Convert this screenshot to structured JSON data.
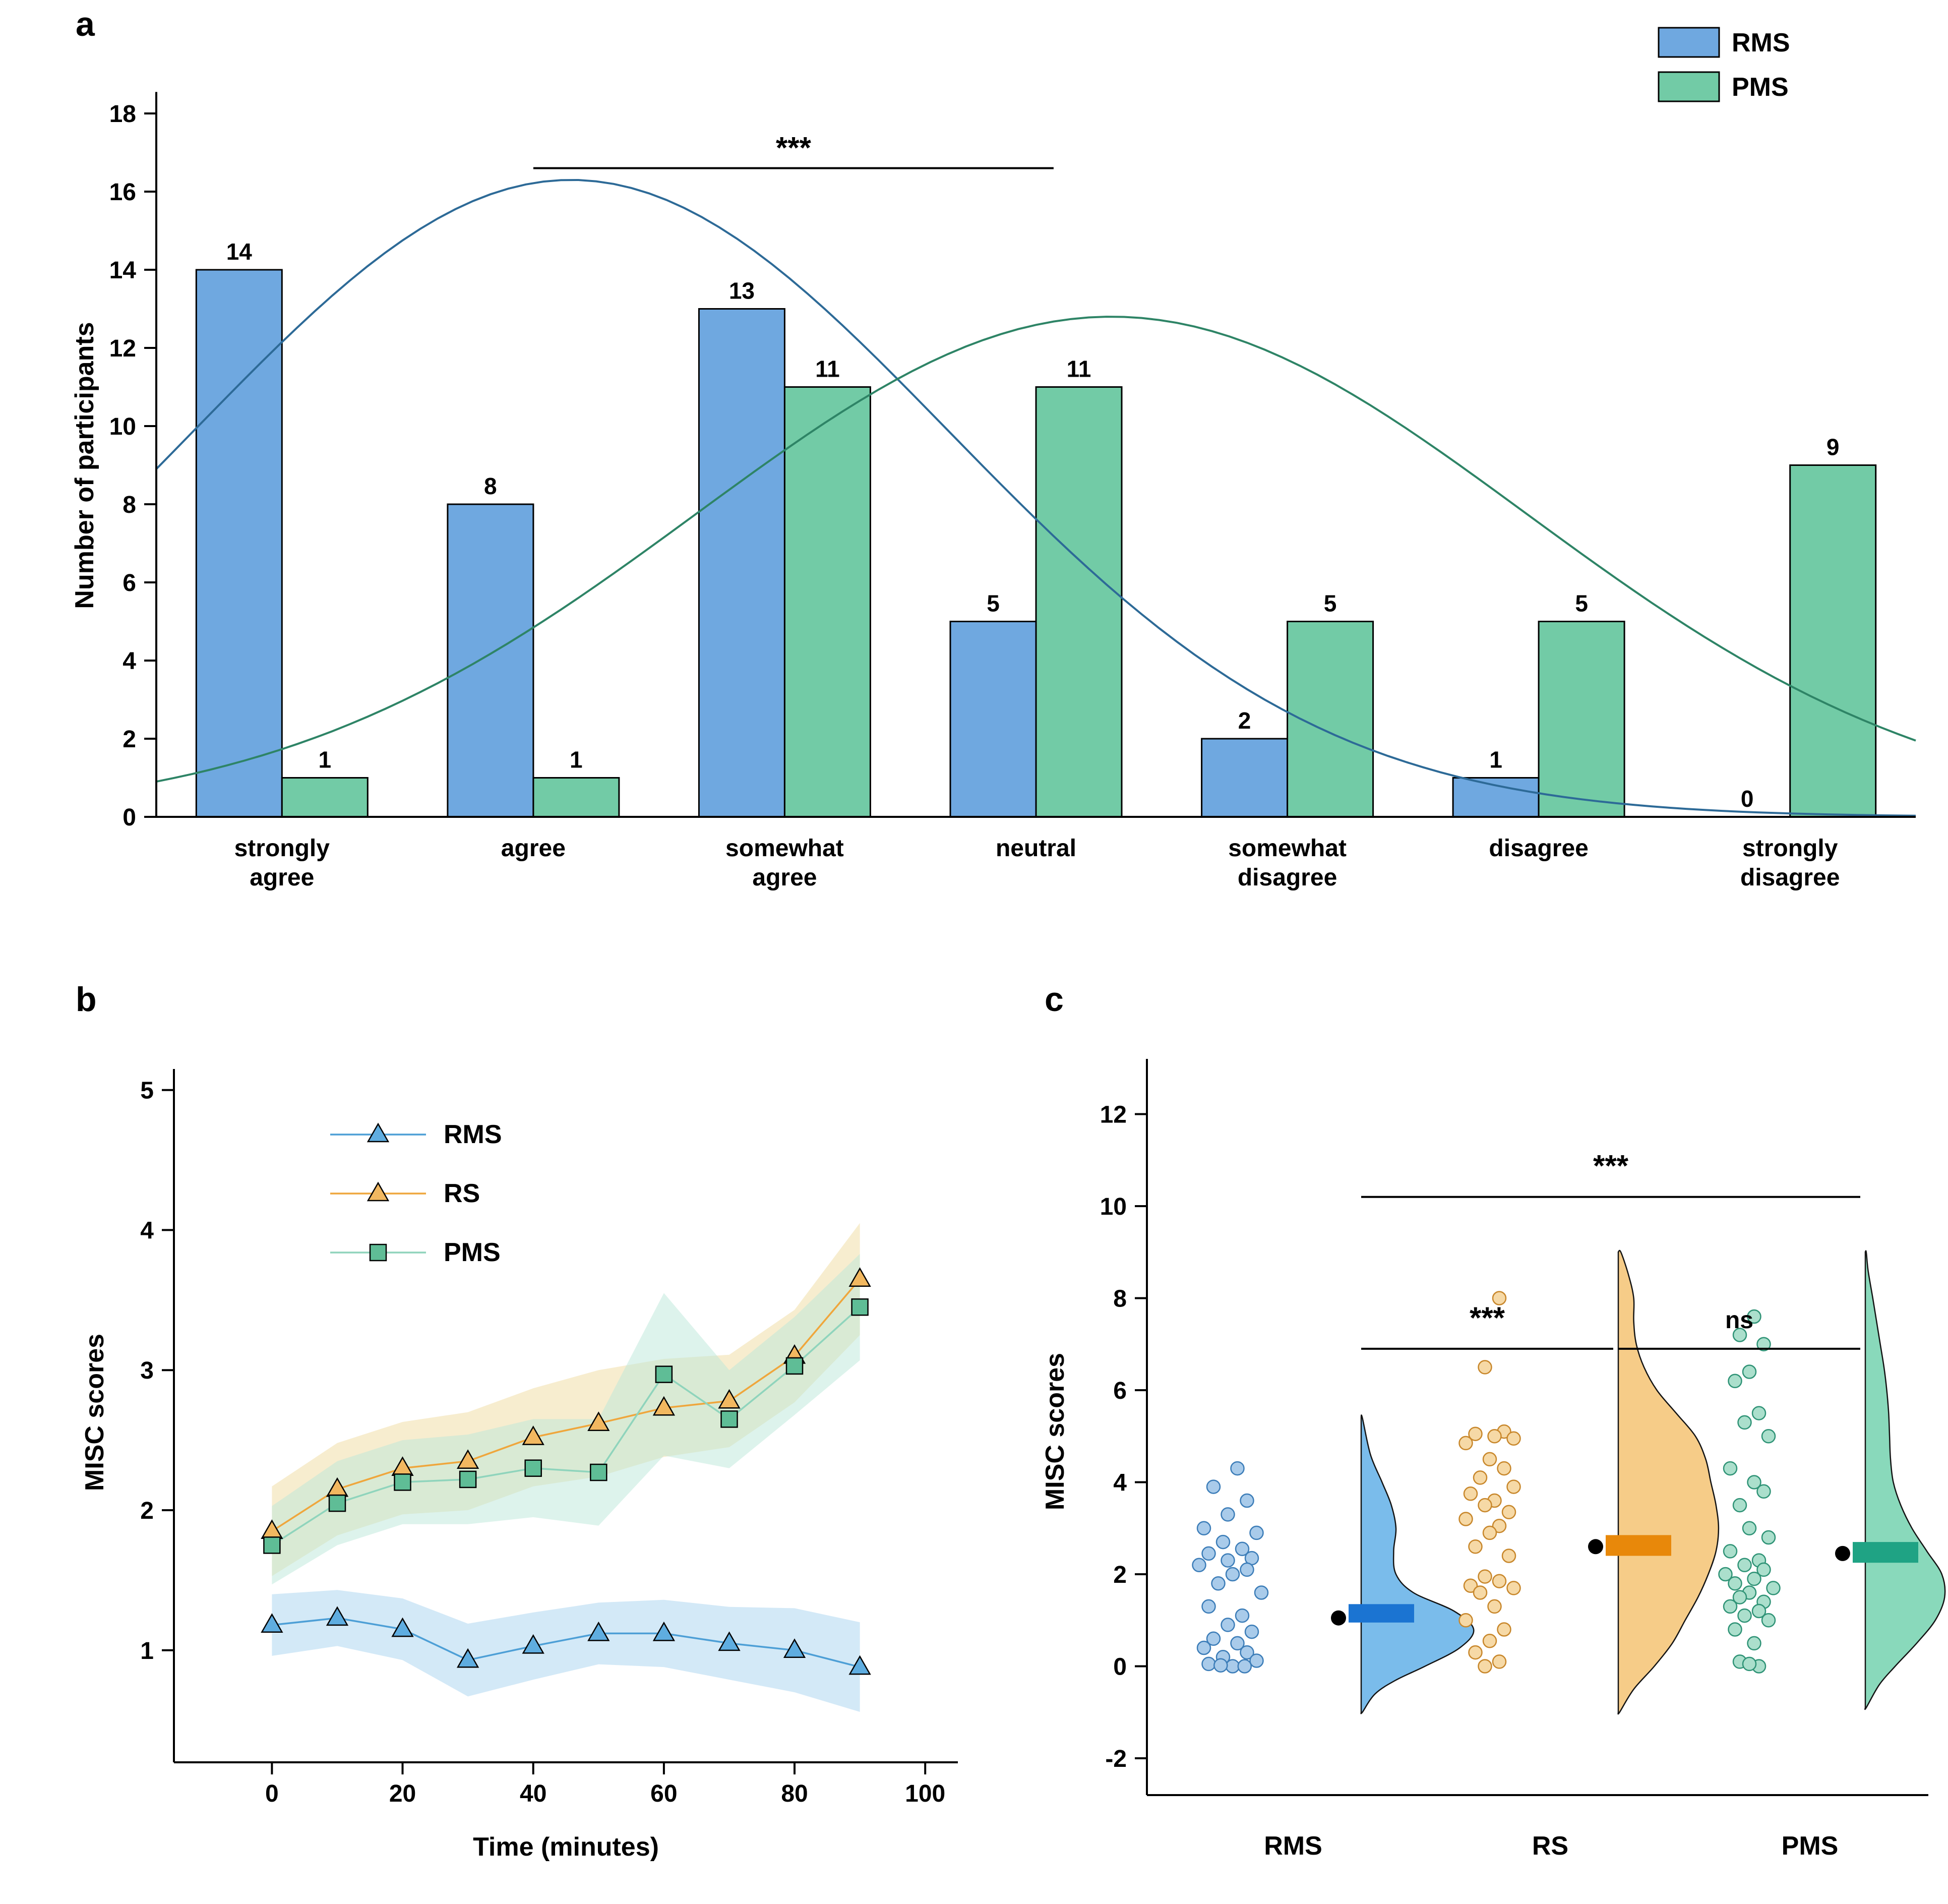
{
  "figure": {
    "panel_labels": {
      "a": "a",
      "b": "b",
      "c": "c"
    }
  },
  "chart_data": [
    {
      "id": "a",
      "type": "bar",
      "title": "",
      "ylabel": "Number of participants",
      "ylim": [
        0,
        18.6
      ],
      "yticks": [
        0,
        2,
        4,
        6,
        8,
        10,
        12,
        14,
        16,
        18
      ],
      "categories": [
        [
          "strongly",
          "agree"
        ],
        [
          "agree"
        ],
        [
          "somewhat",
          "agree"
        ],
        [
          "neutral"
        ],
        [
          "somewhat",
          "disagree"
        ],
        [
          "disagree"
        ],
        [
          "strongly",
          "disagree"
        ]
      ],
      "series": [
        {
          "name": "RMS",
          "values": [
            14,
            8,
            13,
            5,
            2,
            1,
            0
          ],
          "fill": "#6FA8E0",
          "curve": {
            "amp": 16.3,
            "mu": 1.15,
            "sigma": 1.5,
            "color": "#2D6A97"
          }
        },
        {
          "name": "PMS",
          "values": [
            1,
            1,
            11,
            11,
            5,
            5,
            9
          ],
          "fill": "#72CBA6",
          "curve": {
            "amp": 12.8,
            "mu": 3.3,
            "sigma": 1.65,
            "color": "#2E8466"
          }
        }
      ],
      "significance": {
        "label": "***",
        "x1": 1.0,
        "x2": 3.07,
        "y": 16.6
      },
      "legend": {
        "items": [
          "RMS",
          "PMS"
        ],
        "position": "top-right"
      }
    },
    {
      "id": "b",
      "type": "line",
      "xlabel": "Time (minutes)",
      "ylabel": "MISC scores",
      "xlim": [
        -15,
        105
      ],
      "ylim": [
        0.2,
        5.15
      ],
      "xticks": [
        0,
        20,
        40,
        60,
        80,
        100
      ],
      "yticks": [
        1,
        2,
        3,
        4,
        5
      ],
      "x": [
        0,
        10,
        20,
        30,
        40,
        50,
        60,
        70,
        80,
        90
      ],
      "series": [
        {
          "name": "RMS",
          "marker": "triangle",
          "color": "#4D9FD6",
          "markerFill": "#5FADE0",
          "band": "#A8D4F0",
          "values": [
            1.18,
            1.23,
            1.15,
            0.93,
            1.03,
            1.12,
            1.12,
            1.05,
            1.0,
            0.88
          ],
          "err": [
            0.22,
            0.2,
            0.22,
            0.26,
            0.24,
            0.22,
            0.24,
            0.26,
            0.3,
            0.32
          ]
        },
        {
          "name": "RS",
          "marker": "triangle",
          "color": "#EFA63C",
          "markerFill": "#F2B860",
          "band": "#F0DCA0",
          "values": [
            1.85,
            2.15,
            2.3,
            2.35,
            2.52,
            2.62,
            2.73,
            2.78,
            3.1,
            3.65
          ],
          "err": [
            0.32,
            0.33,
            0.33,
            0.35,
            0.35,
            0.38,
            0.35,
            0.33,
            0.33,
            0.4
          ]
        },
        {
          "name": "PMS",
          "marker": "square",
          "color": "#8FD4BC",
          "markerFill": "#5FBD96",
          "band": "#BCE8D9",
          "values": [
            1.75,
            2.05,
            2.2,
            2.22,
            2.3,
            2.27,
            2.97,
            2.65,
            3.03,
            3.45
          ],
          "err": [
            0.28,
            0.3,
            0.3,
            0.32,
            0.35,
            0.38,
            0.58,
            0.35,
            0.35,
            0.38
          ]
        }
      ],
      "legend": {
        "position": "top-inside"
      }
    },
    {
      "id": "c",
      "type": "raincloud",
      "ylabel": "MISC scores",
      "ylim": [
        -2.8,
        13.2
      ],
      "yticks": [
        -2,
        0,
        2,
        4,
        6,
        8,
        10,
        12
      ],
      "xlabels": [
        "RMS",
        "RS",
        "PMS"
      ],
      "groups": [
        {
          "name": "RMS",
          "dotFill": "#A9CBEA",
          "dotStroke": "#3C7DB8",
          "violinFill": "#6FB7EA",
          "meanColor": "#1B74D2",
          "mean": 1.05,
          "meanBox": [
            0.95,
            1.35
          ],
          "dots": [
            [
              0.1,
              4.3
            ],
            [
              -0.4,
              3.9
            ],
            [
              0.3,
              3.6
            ],
            [
              -0.1,
              3.3
            ],
            [
              -0.6,
              3.0
            ],
            [
              0.5,
              2.9
            ],
            [
              -0.2,
              2.7
            ],
            [
              0.2,
              2.55
            ],
            [
              -0.5,
              2.45
            ],
            [
              0.4,
              2.35
            ],
            [
              -0.1,
              2.3
            ],
            [
              -0.7,
              2.2
            ],
            [
              0.3,
              2.1
            ],
            [
              0.0,
              2.0
            ],
            [
              -0.3,
              1.8
            ],
            [
              0.6,
              1.6
            ],
            [
              -0.5,
              1.3
            ],
            [
              0.2,
              1.1
            ],
            [
              -0.1,
              0.9
            ],
            [
              0.4,
              0.75
            ],
            [
              -0.4,
              0.6
            ],
            [
              0.1,
              0.5
            ],
            [
              -0.6,
              0.4
            ],
            [
              0.3,
              0.3
            ],
            [
              -0.2,
              0.2
            ],
            [
              0.5,
              0.12
            ],
            [
              -0.5,
              0.05
            ],
            [
              0.0,
              0.0
            ],
            [
              0.25,
              0.0
            ],
            [
              -0.25,
              0.02
            ]
          ],
          "violin": [
            [
              -1.0,
              0.01
            ],
            [
              -0.6,
              0.12
            ],
            [
              -0.3,
              0.3
            ],
            [
              0.0,
              0.55
            ],
            [
              0.4,
              0.85
            ],
            [
              0.8,
              0.97
            ],
            [
              1.2,
              0.8
            ],
            [
              1.6,
              0.45
            ],
            [
              2.0,
              0.3
            ],
            [
              2.5,
              0.28
            ],
            [
              3.0,
              0.3
            ],
            [
              3.5,
              0.26
            ],
            [
              4.0,
              0.18
            ],
            [
              4.6,
              0.08
            ],
            [
              5.4,
              0.01
            ]
          ]
        },
        {
          "name": "RS",
          "dotFill": "#F6D9A6",
          "dotStroke": "#C8872B",
          "violinFill": "#F6C87E",
          "meanColor": "#E8880A",
          "mean": 2.6,
          "meanBox": [
            2.4,
            2.85
          ],
          "dots": [
            [
              0.2,
              8.0
            ],
            [
              -0.1,
              6.5
            ],
            [
              0.3,
              5.1
            ],
            [
              -0.3,
              5.05
            ],
            [
              0.1,
              5.0
            ],
            [
              0.5,
              4.95
            ],
            [
              -0.5,
              4.85
            ],
            [
              0.0,
              4.5
            ],
            [
              0.3,
              4.3
            ],
            [
              -0.2,
              4.1
            ],
            [
              0.5,
              3.9
            ],
            [
              -0.4,
              3.75
            ],
            [
              0.1,
              3.6
            ],
            [
              -0.1,
              3.5
            ],
            [
              0.4,
              3.35
            ],
            [
              -0.5,
              3.2
            ],
            [
              0.2,
              3.05
            ],
            [
              0.0,
              2.9
            ],
            [
              -0.3,
              2.6
            ],
            [
              0.4,
              2.4
            ],
            [
              -0.1,
              1.95
            ],
            [
              0.2,
              1.85
            ],
            [
              -0.4,
              1.75
            ],
            [
              0.5,
              1.7
            ],
            [
              -0.2,
              1.6
            ],
            [
              0.1,
              1.3
            ],
            [
              -0.5,
              1.0
            ],
            [
              0.3,
              0.8
            ],
            [
              0.0,
              0.55
            ],
            [
              -0.3,
              0.3
            ],
            [
              0.2,
              0.1
            ],
            [
              -0.1,
              0.0
            ]
          ],
          "violin": [
            [
              -1.0,
              0.01
            ],
            [
              -0.5,
              0.12
            ],
            [
              0.0,
              0.28
            ],
            [
              0.5,
              0.42
            ],
            [
              1.0,
              0.52
            ],
            [
              1.5,
              0.62
            ],
            [
              2.0,
              0.7
            ],
            [
              2.5,
              0.76
            ],
            [
              3.0,
              0.78
            ],
            [
              3.5,
              0.76
            ],
            [
              4.0,
              0.72
            ],
            [
              4.5,
              0.68
            ],
            [
              5.0,
              0.6
            ],
            [
              5.5,
              0.45
            ],
            [
              6.0,
              0.3
            ],
            [
              6.5,
              0.2
            ],
            [
              7.0,
              0.14
            ],
            [
              7.5,
              0.12
            ],
            [
              8.0,
              0.12
            ],
            [
              8.5,
              0.08
            ],
            [
              9.0,
              0.02
            ]
          ]
        },
        {
          "name": "PMS",
          "dotFill": "#ABDFCC",
          "dotStroke": "#2F9376",
          "violinFill": "#80D6B6",
          "meanColor": "#1FA384",
          "mean": 2.45,
          "meanBox": [
            2.25,
            2.7
          ],
          "dots": [
            [
              0.1,
              7.6
            ],
            [
              -0.2,
              7.2
            ],
            [
              0.3,
              7.0
            ],
            [
              0.0,
              6.4
            ],
            [
              -0.3,
              6.2
            ],
            [
              0.2,
              5.5
            ],
            [
              -0.1,
              5.3
            ],
            [
              0.4,
              5.0
            ],
            [
              -0.4,
              4.3
            ],
            [
              0.1,
              4.0
            ],
            [
              0.3,
              3.8
            ],
            [
              -0.2,
              3.5
            ],
            [
              0.0,
              3.0
            ],
            [
              0.4,
              2.8
            ],
            [
              -0.4,
              2.5
            ],
            [
              0.2,
              2.3
            ],
            [
              -0.1,
              2.2
            ],
            [
              0.3,
              2.1
            ],
            [
              -0.5,
              2.0
            ],
            [
              0.1,
              1.9
            ],
            [
              -0.3,
              1.8
            ],
            [
              0.5,
              1.7
            ],
            [
              0.0,
              1.6
            ],
            [
              -0.2,
              1.5
            ],
            [
              0.3,
              1.4
            ],
            [
              -0.4,
              1.3
            ],
            [
              0.2,
              1.2
            ],
            [
              -0.1,
              1.1
            ],
            [
              0.4,
              1.0
            ],
            [
              -0.3,
              0.8
            ],
            [
              0.1,
              0.5
            ],
            [
              -0.2,
              0.1
            ],
            [
              0.2,
              0.0
            ],
            [
              0.0,
              0.05
            ]
          ],
          "violin": [
            [
              -0.9,
              0.01
            ],
            [
              -0.4,
              0.15
            ],
            [
              0.0,
              0.32
            ],
            [
              0.5,
              0.55
            ],
            [
              1.0,
              0.75
            ],
            [
              1.5,
              0.85
            ],
            [
              2.0,
              0.82
            ],
            [
              2.5,
              0.66
            ],
            [
              3.0,
              0.5
            ],
            [
              3.5,
              0.38
            ],
            [
              4.0,
              0.3
            ],
            [
              4.5,
              0.27
            ],
            [
              5.0,
              0.26
            ],
            [
              5.5,
              0.25
            ],
            [
              6.0,
              0.23
            ],
            [
              6.5,
              0.2
            ],
            [
              7.0,
              0.16
            ],
            [
              7.5,
              0.12
            ],
            [
              8.0,
              0.08
            ],
            [
              8.6,
              0.03
            ],
            [
              9.0,
              0.01
            ]
          ]
        }
      ],
      "significance": [
        {
          "label": "***",
          "g1": 0,
          "g2": 1,
          "y": 6.9,
          "labelY": 7.35
        },
        {
          "label": "ns",
          "g1": 1,
          "g2": 2,
          "y": 6.9,
          "labelY": 7.35
        },
        {
          "label": "***",
          "g1": 0,
          "g2": 2,
          "y": 10.2,
          "labelY": 10.65
        }
      ]
    }
  ]
}
